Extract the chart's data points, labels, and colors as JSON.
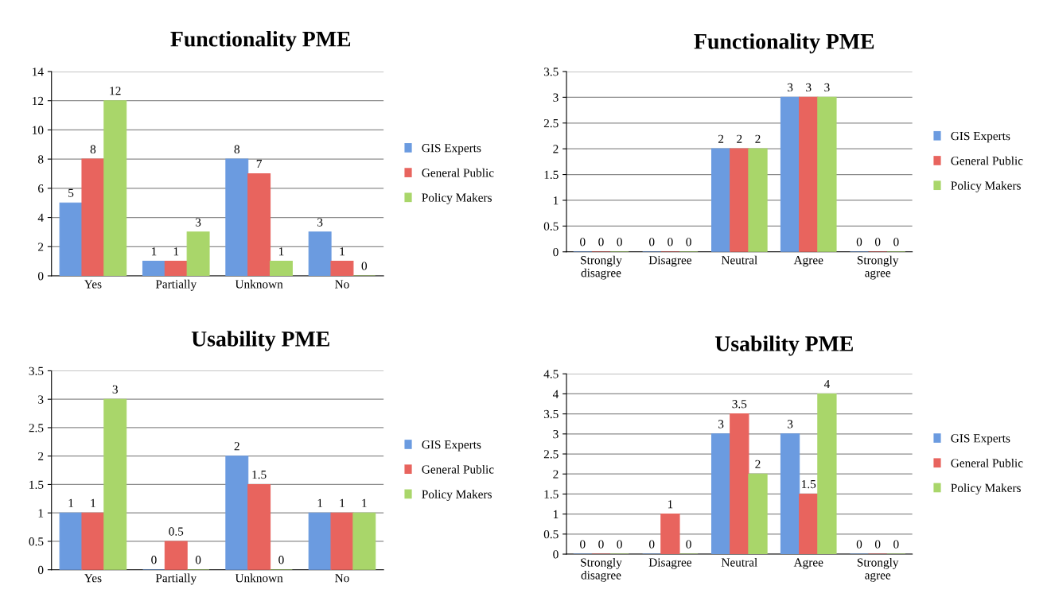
{
  "chart_data": [
    {
      "type": "bar",
      "title": "Functionality PME",
      "categories": [
        "Yes",
        "Partially",
        "Unknown",
        "No"
      ],
      "series": [
        {
          "name": "GIS Experts",
          "color": "#6b9be0",
          "values": [
            5,
            1,
            8,
            3
          ]
        },
        {
          "name": "General Public",
          "color": "#e8645e",
          "values": [
            8,
            1,
            7,
            1
          ]
        },
        {
          "name": "Policy Makers",
          "color": "#a9d66a",
          "values": [
            12,
            3,
            1,
            0
          ]
        }
      ],
      "ylim": [
        0,
        14
      ],
      "yticks": [
        0,
        2,
        4,
        6,
        8,
        10,
        12,
        14
      ],
      "grid": "y",
      "legend": "right",
      "data_labels": true
    },
    {
      "type": "bar",
      "title": "Functionality PME",
      "categories": [
        "Strongly\ndisagree",
        "Disagree",
        "Neutral",
        "Agree",
        "Strongly\nagree"
      ],
      "series": [
        {
          "name": "GIS Experts",
          "color": "#6b9be0",
          "values": [
            0,
            0,
            2,
            3,
            0
          ]
        },
        {
          "name": "General Public",
          "color": "#e8645e",
          "values": [
            0,
            0,
            2,
            3,
            0
          ]
        },
        {
          "name": "Policy Makers",
          "color": "#a9d66a",
          "values": [
            0,
            0,
            2,
            3,
            0
          ]
        }
      ],
      "ylim": [
        0,
        3.5
      ],
      "yticks": [
        0,
        0.5,
        1,
        1.5,
        2,
        2.5,
        3,
        3.5
      ],
      "grid": "y",
      "legend": "right",
      "data_labels": true
    },
    {
      "type": "bar",
      "title": "Usability PME",
      "categories": [
        "Yes",
        "Partially",
        "Unknown",
        "No"
      ],
      "series": [
        {
          "name": "GIS Experts",
          "color": "#6b9be0",
          "values": [
            1,
            0,
            2,
            1
          ]
        },
        {
          "name": "General Public",
          "color": "#e8645e",
          "values": [
            1,
            0.5,
            1.5,
            1
          ]
        },
        {
          "name": "Policy Makers",
          "color": "#a9d66a",
          "values": [
            3,
            0,
            0,
            1
          ]
        }
      ],
      "ylim": [
        0,
        3.5
      ],
      "yticks": [
        0,
        0.5,
        1,
        1.5,
        2,
        2.5,
        3,
        3.5
      ],
      "grid": "y",
      "legend": "right",
      "data_labels": true
    },
    {
      "type": "bar",
      "title": "Usability PME",
      "categories": [
        "Strongly\ndisagree",
        "Disagree",
        "Neutral",
        "Agree",
        "Strongly\nagree"
      ],
      "series": [
        {
          "name": "GIS Experts",
          "color": "#6b9be0",
          "values": [
            0,
            0,
            3,
            3,
            0
          ]
        },
        {
          "name": "General Public",
          "color": "#e8645e",
          "values": [
            0,
            1,
            3.5,
            1.5,
            0
          ]
        },
        {
          "name": "Policy Makers",
          "color": "#a9d66a",
          "values": [
            0,
            0,
            2,
            4,
            0
          ]
        }
      ],
      "ylim": [
        0,
        4.5
      ],
      "yticks": [
        0,
        0.5,
        1,
        1.5,
        2,
        2.5,
        3,
        3.5,
        4,
        4.5
      ],
      "grid": "y",
      "legend": "right",
      "data_labels": true
    }
  ]
}
